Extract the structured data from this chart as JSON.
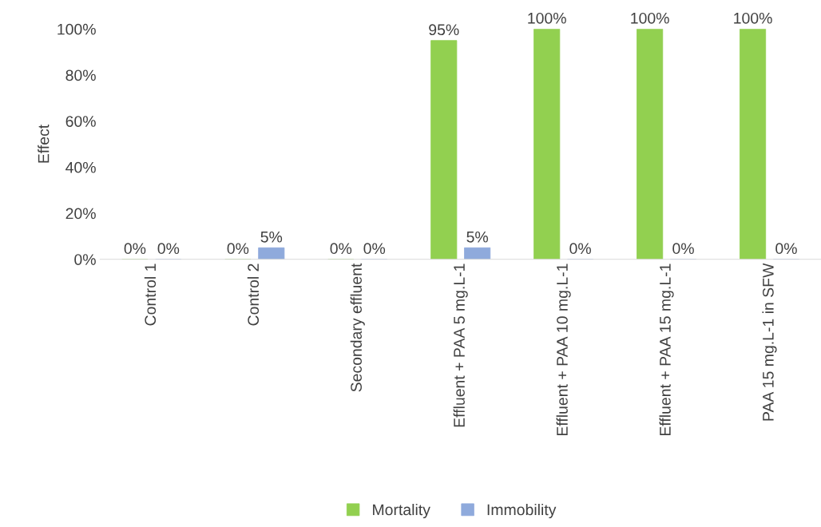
{
  "chart_data": {
    "type": "bar",
    "ylabel": "Effect",
    "categories": [
      "Control 1",
      "Control 2",
      "Secondary effluent",
      "Effluent + PAA 5 mg.L-1",
      "Effluent + PAA 10 mg.L-1",
      "Effluent + PAA 15 mg.L-1",
      "PAA 15 mg.L-1 in SFW"
    ],
    "series": [
      {
        "name": "Mortality",
        "color": "#92d050",
        "values": [
          0,
          0,
          0,
          95,
          100,
          100,
          100
        ],
        "value_labels": [
          "0%",
          "0%",
          "0%",
          "95%",
          "100%",
          "100%",
          "100%"
        ]
      },
      {
        "name": "Immobility",
        "color": "#8faadc",
        "values": [
          0,
          5,
          0,
          5,
          0,
          0,
          0
        ],
        "value_labels": [
          "0%",
          "5%",
          "0%",
          "5%",
          "0%",
          "0%",
          "0%"
        ]
      }
    ],
    "ylim": [
      0,
      100
    ],
    "yticks": [
      {
        "value": 0,
        "label": "0%"
      },
      {
        "value": 20,
        "label": "20%"
      },
      {
        "value": 40,
        "label": "40%"
      },
      {
        "value": 60,
        "label": "60%"
      },
      {
        "value": 80,
        "label": "80%"
      },
      {
        "value": 100,
        "label": "100%"
      }
    ],
    "grid": false,
    "legend": "bottom"
  }
}
